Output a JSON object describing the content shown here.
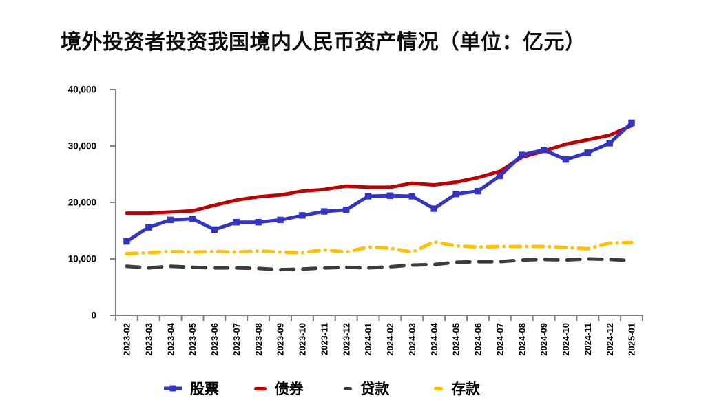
{
  "chart_data": {
    "type": "line",
    "title": "境外投资者投资我国境内人民币资产情况（单位：亿元）",
    "x": [
      "2023-02",
      "2023-03",
      "2023-04",
      "2023-05",
      "2023-06",
      "2023-07",
      "2023-08",
      "2023-09",
      "2023-10",
      "2023-11",
      "2023-12",
      "2024-01",
      "2024-02",
      "2024-03",
      "2024-04",
      "2024-05",
      "2024-06",
      "2024-07",
      "2024-08",
      "2024-09",
      "2024-10",
      "2024-11",
      "2024-12",
      "2025-01"
    ],
    "series": [
      {
        "key": "stocks",
        "name": "股票",
        "color": "#3333C4",
        "line": "solid",
        "marker": "square",
        "values": [
          13100,
          15600,
          16900,
          17100,
          15200,
          16500,
          16500,
          16900,
          17700,
          18400,
          18700,
          21100,
          21200,
          21100,
          18900,
          21500,
          22000,
          24700,
          28400,
          29300,
          27600,
          28800,
          30500,
          34100
        ]
      },
      {
        "key": "bonds",
        "name": "债券",
        "color": "#C00000",
        "line": "solid",
        "marker": "none",
        "values": [
          18100,
          18100,
          18300,
          18500,
          19500,
          20400,
          21000,
          21300,
          22000,
          22300,
          22900,
          22700,
          22700,
          23400,
          23100,
          23600,
          24400,
          25500,
          28000,
          29100,
          30300,
          31100,
          31900,
          33600
        ]
      },
      {
        "key": "loans",
        "name": "贷款",
        "color": "#3C3C3C",
        "line": "dashed",
        "marker": "none",
        "values": [
          8700,
          8400,
          8700,
          8500,
          8400,
          8400,
          8300,
          8100,
          8200,
          8400,
          8500,
          8400,
          8600,
          8900,
          9000,
          9400,
          9500,
          9500,
          9800,
          9900,
          9800,
          10000,
          9900,
          9700
        ]
      },
      {
        "key": "deposits",
        "name": "存款",
        "color": "#FFC000",
        "line": "dashdot",
        "marker": "none",
        "values": [
          10900,
          11100,
          11300,
          11200,
          11300,
          11200,
          11400,
          11200,
          11100,
          11600,
          11200,
          12100,
          11900,
          11200,
          13000,
          12300,
          12100,
          12200,
          12200,
          12200,
          12000,
          11800,
          12800,
          12900
        ]
      }
    ],
    "ylim": [
      0,
      40000
    ],
    "yticks": [
      0,
      10000,
      20000,
      30000,
      40000
    ],
    "ytick_labels": [
      "0",
      "10,000",
      "20,000",
      "30,000",
      "40,000"
    ],
    "grid": false,
    "legend_position": "bottom",
    "axis_color": "#808080",
    "text_color": "#000000",
    "background": "#FFFFFF"
  }
}
